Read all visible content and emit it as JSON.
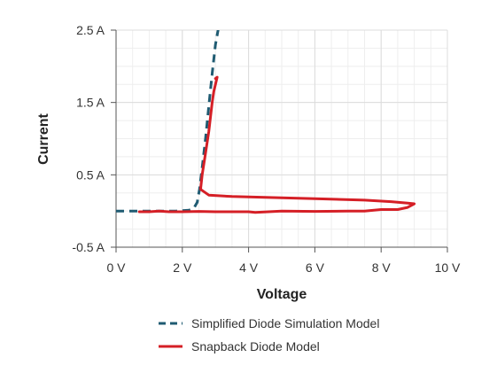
{
  "chart_data": {
    "type": "line",
    "title": "",
    "xlabel": "Voltage",
    "ylabel": "Current",
    "xlim": [
      0,
      10
    ],
    "ylim": [
      -0.5,
      2.5
    ],
    "x_ticks": [
      0,
      2,
      4,
      6,
      8,
      10
    ],
    "x_tick_labels": [
      "0 V",
      "2 V",
      "4 V",
      "6 V",
      "8 V",
      "10 V"
    ],
    "y_ticks": [
      -0.5,
      0.5,
      1.5,
      2.5
    ],
    "y_tick_labels": [
      "-0.5 A",
      "0.5 A",
      "1.5 A",
      "2.5 A"
    ],
    "grid": true,
    "legend_position": "bottom",
    "series": [
      {
        "name": "Simplified Diode Simulation Model",
        "color": "#1f5b72",
        "style": "dashed",
        "x": [
          0,
          1,
          1.8,
          2.2,
          2.35,
          2.45,
          2.52,
          2.6,
          2.7,
          2.8,
          2.9,
          3.0,
          3.1
        ],
        "y": [
          0,
          0,
          0,
          0.01,
          0.04,
          0.12,
          0.3,
          0.6,
          1.0,
          1.45,
          1.9,
          2.3,
          2.55
        ]
      },
      {
        "name": "Snapback Diode Model",
        "color": "#d51f26",
        "style": "solid",
        "x": [
          0.7,
          1.0,
          1.3,
          1.6,
          2.0,
          2.5,
          3.0,
          4.0,
          4.2,
          5.0,
          6.0,
          7.0,
          7.5,
          8.0,
          8.5,
          8.8,
          9.0,
          8.8,
          8.3,
          7.5,
          6.0,
          4.5,
          3.5,
          2.8,
          2.55,
          2.6,
          2.7,
          2.8,
          2.85,
          2.9,
          2.95,
          3.0,
          3.05,
          3.0
        ],
        "y": [
          -0.01,
          -0.01,
          0.0,
          -0.01,
          -0.01,
          -0.005,
          -0.01,
          -0.01,
          -0.02,
          0.0,
          -0.005,
          0.0,
          0.0,
          0.02,
          0.02,
          0.05,
          0.1,
          0.11,
          0.13,
          0.15,
          0.17,
          0.19,
          0.2,
          0.22,
          0.3,
          0.5,
          0.8,
          1.1,
          1.3,
          1.5,
          1.65,
          1.75,
          1.85,
          1.83
        ]
      }
    ]
  }
}
